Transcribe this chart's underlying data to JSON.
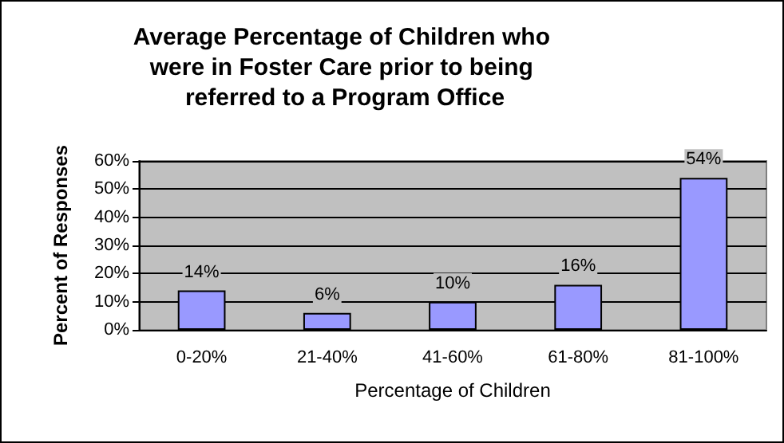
{
  "chart_data": {
    "type": "bar",
    "title": "Average Percentage of Children who were in Foster Care prior to being referred to a Program Office",
    "xlabel": "Percentage of Children",
    "ylabel": "Percent of Responses",
    "categories": [
      "0-20%",
      "21-40%",
      "41-60%",
      "61-80%",
      "81-100%"
    ],
    "values": [
      14,
      6,
      10,
      16,
      54
    ],
    "color": "#9999ff",
    "value_labels": [
      "14%",
      "6%",
      "10%",
      "16%",
      "54%"
    ],
    "ylim": [
      0,
      60
    ],
    "yticks": [
      {
        "value": 0,
        "label": "0%"
      },
      {
        "value": 10,
        "label": "10%"
      },
      {
        "value": 20,
        "label": "20%"
      },
      {
        "value": 30,
        "label": "30%"
      },
      {
        "value": 40,
        "label": "40%"
      },
      {
        "value": 50,
        "label": "50%"
      },
      {
        "value": 60,
        "label": "60%"
      }
    ],
    "grid": "y"
  }
}
